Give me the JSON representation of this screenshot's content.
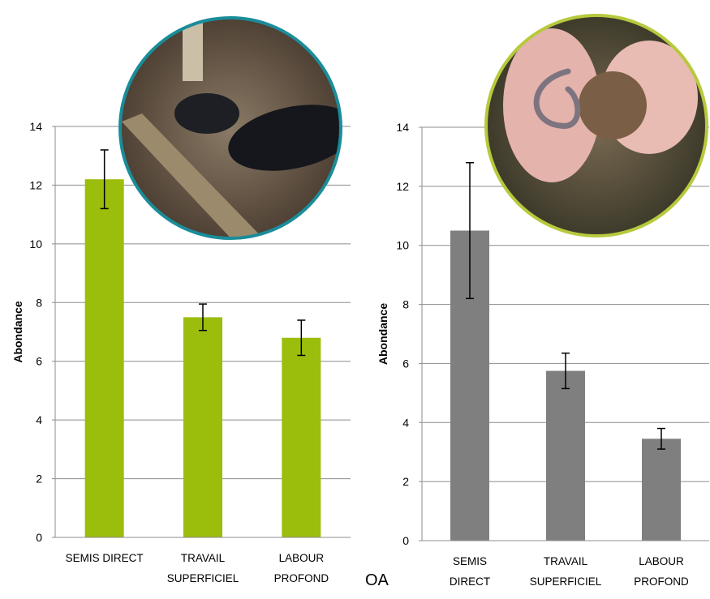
{
  "chart_data": [
    {
      "type": "bar",
      "ylabel": "Abondance",
      "categories": [
        [
          "SEMIS DIRECT"
        ],
        [
          "TRAVAIL",
          "SUPERFICIEL"
        ],
        [
          "LABOUR",
          "PROFOND"
        ]
      ],
      "values": [
        12.2,
        7.5,
        6.8
      ],
      "errors": [
        1.0,
        0.45,
        0.6
      ],
      "color": "#9bbd0c",
      "ylim": [
        0,
        14
      ],
      "yticks": [
        0,
        2,
        4,
        6,
        8,
        10,
        12,
        14
      ],
      "grid": true
    },
    {
      "type": "bar",
      "ylabel": "Abondance",
      "categories": [
        [
          "SEMIS",
          "DIRECT"
        ],
        [
          "TRAVAIL",
          "SUPERFICIEL"
        ],
        [
          "LABOUR",
          "PROFOND"
        ]
      ],
      "values": [
        10.5,
        5.75,
        3.45
      ],
      "errors": [
        2.3,
        0.6,
        0.35
      ],
      "color": "#7f7f7f",
      "ylim": [
        0,
        14
      ],
      "yticks": [
        0,
        2,
        4,
        6,
        8,
        10,
        12,
        14
      ],
      "grid": true
    }
  ],
  "annotation": "OA"
}
